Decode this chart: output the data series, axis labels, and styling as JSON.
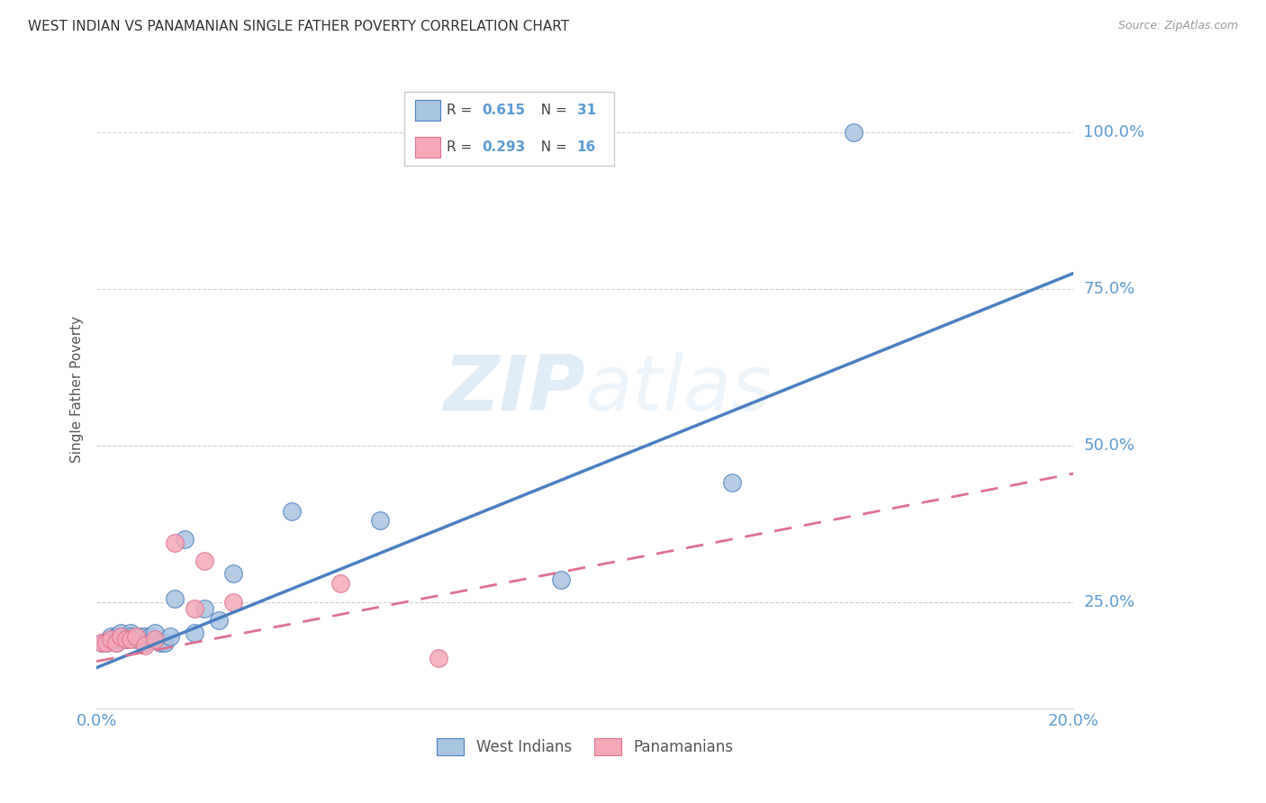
{
  "title": "WEST INDIAN VS PANAMANIAN SINGLE FATHER POVERTY CORRELATION CHART",
  "source": "Source: ZipAtlas.com",
  "ylabel": "Single Father Poverty",
  "xlim": [
    0.0,
    0.2
  ],
  "ylim": [
    0.08,
    1.1
  ],
  "xtick_positions": [
    0.0,
    0.05,
    0.1,
    0.15,
    0.2
  ],
  "xtick_labels": [
    "0.0%",
    "",
    "",
    "",
    "20.0%"
  ],
  "ytick_labels": [
    "25.0%",
    "50.0%",
    "75.0%",
    "100.0%"
  ],
  "ytick_values": [
    0.25,
    0.5,
    0.75,
    1.0
  ],
  "west_indian_color": "#a8c4e0",
  "panamanian_color": "#f4a8b8",
  "trend_blue": "#4a7fc1",
  "trend_pink": "#e07090",
  "watermark": "ZIPatlas",
  "blue_line_x": [
    0.0,
    0.2
  ],
  "blue_line_y": [
    0.145,
    0.775
  ],
  "pink_line_x": [
    0.0,
    0.2
  ],
  "pink_line_y": [
    0.155,
    0.455
  ],
  "west_indian_x": [
    0.001,
    0.002,
    0.003,
    0.003,
    0.004,
    0.004,
    0.005,
    0.005,
    0.006,
    0.007,
    0.007,
    0.008,
    0.009,
    0.01,
    0.01,
    0.011,
    0.012,
    0.013,
    0.014,
    0.015,
    0.016,
    0.018,
    0.02,
    0.022,
    0.025,
    0.028,
    0.04,
    0.058,
    0.095,
    0.13,
    0.155
  ],
  "west_indian_y": [
    0.185,
    0.185,
    0.19,
    0.195,
    0.185,
    0.195,
    0.19,
    0.2,
    0.19,
    0.2,
    0.195,
    0.19,
    0.195,
    0.195,
    0.185,
    0.195,
    0.2,
    0.185,
    0.185,
    0.195,
    0.255,
    0.35,
    0.2,
    0.24,
    0.22,
    0.295,
    0.395,
    0.38,
    0.285,
    0.44,
    1.0
  ],
  "west_indian_outlier_x": [
    0.155
  ],
  "west_indian_outlier_y": [
    1.0
  ],
  "panamanian_x": [
    0.001,
    0.002,
    0.003,
    0.004,
    0.005,
    0.006,
    0.007,
    0.008,
    0.01,
    0.012,
    0.016,
    0.02,
    0.022,
    0.028,
    0.05,
    0.07
  ],
  "panamanian_y": [
    0.185,
    0.185,
    0.19,
    0.185,
    0.195,
    0.19,
    0.19,
    0.195,
    0.18,
    0.19,
    0.345,
    0.24,
    0.315,
    0.25,
    0.28,
    0.16
  ]
}
